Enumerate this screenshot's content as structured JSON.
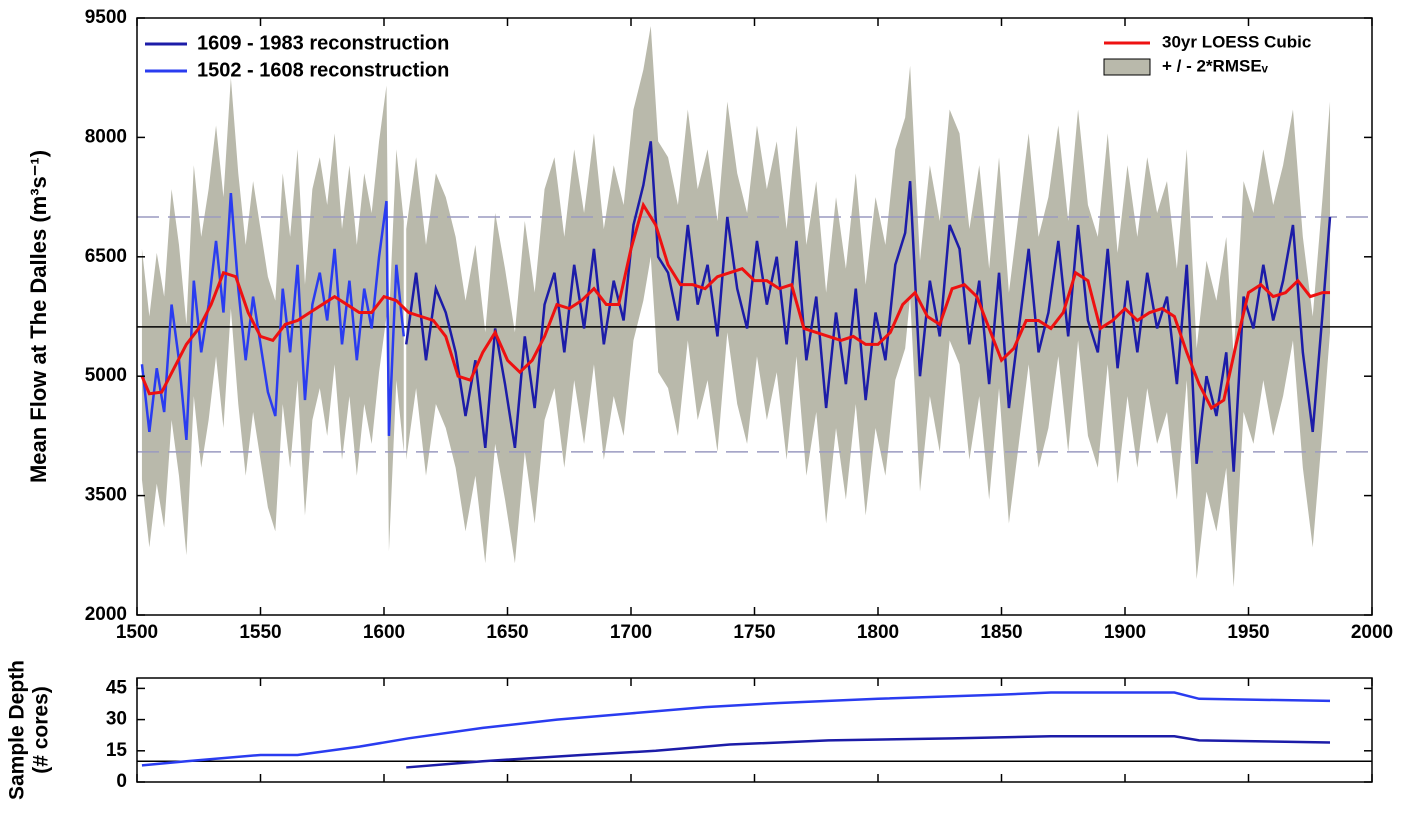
{
  "chart_data": [
    {
      "type": "line",
      "y_label": "Mean  Flow at The Dalles (m³s⁻¹)",
      "xlim": [
        1500,
        2000
      ],
      "xticks": [
        1500,
        1550,
        1600,
        1650,
        1700,
        1750,
        1800,
        1850,
        1900,
        1950,
        2000
      ],
      "ylim": [
        2000,
        9500
      ],
      "yticks": [
        2000,
        3500,
        5000,
        6500,
        8000,
        9500
      ],
      "hlines": [
        {
          "value": 5620,
          "color": "#000000",
          "dashed": false
        },
        {
          "value": 7000,
          "color": "#9a9ac0",
          "dashed": true
        },
        {
          "value": 4050,
          "color": "#9a9ac0",
          "dashed": true
        }
      ],
      "band": {
        "name": "+ / - 2*RMSEᵥ",
        "color": "#b9b9ab",
        "halfwidth": 1450
      },
      "series": [
        {
          "name": "1609 - 1983 reconstruction",
          "color": "#1c1ca8",
          "legend": "upper left",
          "band": true,
          "x": [
            1609,
            1613,
            1617,
            1621,
            1625,
            1629,
            1633,
            1637,
            1641,
            1645,
            1649,
            1653,
            1657,
            1661,
            1665,
            1669,
            1673,
            1677,
            1681,
            1685,
            1689,
            1693,
            1697,
            1701,
            1705,
            1708,
            1711,
            1715,
            1719,
            1723,
            1727,
            1731,
            1735,
            1739,
            1743,
            1747,
            1751,
            1755,
            1759,
            1763,
            1767,
            1771,
            1775,
            1779,
            1783,
            1787,
            1791,
            1795,
            1799,
            1803,
            1807,
            1811,
            1813,
            1817,
            1821,
            1825,
            1829,
            1833,
            1837,
            1841,
            1845,
            1849,
            1853,
            1857,
            1861,
            1865,
            1869,
            1873,
            1877,
            1881,
            1885,
            1889,
            1893,
            1897,
            1901,
            1905,
            1909,
            1913,
            1917,
            1921,
            1925,
            1929,
            1933,
            1937,
            1941,
            1944,
            1948,
            1952,
            1956,
            1960,
            1964,
            1968,
            1972,
            1976,
            1980,
            1983
          ],
          "values": [
            5400,
            6300,
            5200,
            6100,
            5800,
            5300,
            4500,
            5200,
            4100,
            5600,
            4900,
            4100,
            5500,
            4600,
            5900,
            6300,
            5300,
            6400,
            5600,
            6600,
            5400,
            6200,
            5700,
            6900,
            7400,
            7950,
            6500,
            6300,
            5700,
            6900,
            5900,
            6400,
            5500,
            7000,
            6100,
            5600,
            6700,
            5900,
            6500,
            5400,
            6700,
            5200,
            6000,
            4600,
            5800,
            4900,
            6100,
            4700,
            5800,
            5200,
            6400,
            6800,
            7450,
            5000,
            6200,
            5500,
            6900,
            6600,
            5400,
            6200,
            4900,
            6300,
            4600,
            5600,
            6600,
            5300,
            5800,
            6700,
            5500,
            6900,
            5700,
            5300,
            6600,
            5100,
            6200,
            5300,
            6300,
            5600,
            6000,
            4900,
            6400,
            3900,
            5000,
            4500,
            5300,
            3800,
            6000,
            5600,
            6400,
            5700,
            6200,
            6900,
            5300,
            4300,
            5800,
            7000
          ]
        },
        {
          "name": "1502 - 1608 reconstruction",
          "color": "#2a3cf0",
          "legend": "upper left",
          "band": true,
          "x": [
            1502,
            1505,
            1508,
            1511,
            1514,
            1517,
            1520,
            1523,
            1526,
            1529,
            1532,
            1535,
            1538,
            1541,
            1544,
            1547,
            1550,
            1553,
            1556,
            1559,
            1562,
            1565,
            1568,
            1571,
            1574,
            1577,
            1580,
            1583,
            1586,
            1589,
            1592,
            1595,
            1598,
            1601,
            1602,
            1605,
            1608
          ],
          "values": [
            5150,
            4300,
            5100,
            4550,
            5900,
            5200,
            4200,
            6200,
            5300,
            5900,
            6700,
            5800,
            7300,
            6100,
            5200,
            6000,
            5400,
            4800,
            4500,
            6100,
            5300,
            6400,
            4700,
            5900,
            6300,
            5700,
            6600,
            5400,
            6200,
            5200,
            6100,
            5600,
            6500,
            7200,
            4250,
            6400,
            5500
          ]
        },
        {
          "name": "30yr LOESS Cubic",
          "color": "#ee1111",
          "legend": "upper right",
          "band": false,
          "x": [
            1502,
            1505,
            1510,
            1515,
            1520,
            1525,
            1530,
            1535,
            1540,
            1545,
            1550,
            1555,
            1560,
            1565,
            1570,
            1575,
            1580,
            1585,
            1590,
            1595,
            1600,
            1605,
            1610,
            1615,
            1620,
            1625,
            1630,
            1635,
            1640,
            1645,
            1650,
            1655,
            1660,
            1665,
            1670,
            1675,
            1680,
            1685,
            1690,
            1695,
            1700,
            1705,
            1710,
            1715,
            1720,
            1725,
            1730,
            1735,
            1740,
            1745,
            1750,
            1755,
            1760,
            1765,
            1770,
            1775,
            1780,
            1785,
            1790,
            1795,
            1800,
            1805,
            1810,
            1815,
            1820,
            1825,
            1830,
            1835,
            1840,
            1845,
            1850,
            1855,
            1860,
            1865,
            1870,
            1875,
            1880,
            1885,
            1890,
            1895,
            1900,
            1905,
            1910,
            1915,
            1920,
            1925,
            1930,
            1935,
            1940,
            1945,
            1950,
            1955,
            1960,
            1965,
            1970,
            1975,
            1980,
            1983
          ],
          "values": [
            5000,
            4780,
            4800,
            5100,
            5400,
            5600,
            5900,
            6300,
            6250,
            5800,
            5500,
            5450,
            5650,
            5700,
            5800,
            5900,
            6000,
            5900,
            5800,
            5800,
            6000,
            5950,
            5800,
            5750,
            5700,
            5500,
            5000,
            4950,
            5300,
            5550,
            5200,
            5050,
            5200,
            5500,
            5900,
            5850,
            5950,
            6100,
            5900,
            5900,
            6600,
            7150,
            6900,
            6400,
            6150,
            6150,
            6100,
            6250,
            6300,
            6350,
            6200,
            6200,
            6100,
            6150,
            5600,
            5550,
            5500,
            5450,
            5500,
            5400,
            5400,
            5550,
            5900,
            6050,
            5750,
            5650,
            6100,
            6150,
            6000,
            5600,
            5200,
            5350,
            5700,
            5700,
            5600,
            5800,
            6300,
            6200,
            5600,
            5700,
            5850,
            5700,
            5800,
            5850,
            5750,
            5300,
            4900,
            4600,
            4700,
            5400,
            6050,
            6150,
            6000,
            6050,
            6200,
            6000,
            6050,
            6050
          ]
        }
      ]
    },
    {
      "type": "line",
      "y_label": [
        "Sample Depth",
        "(# cores)"
      ],
      "xlim": [
        1500,
        2000
      ],
      "xticks": [
        1500,
        1550,
        1600,
        1650,
        1700,
        1750,
        1800,
        1850,
        1900,
        1950,
        2000
      ],
      "ylim": [
        0,
        50
      ],
      "yticks": [
        0,
        15,
        30,
        45
      ],
      "hlines": [
        {
          "value": 10,
          "color": "#000000",
          "dashed": false
        }
      ],
      "series": [
        {
          "color": "#2a3cf0",
          "x": [
            1502,
            1520,
            1550,
            1565,
            1590,
            1610,
            1640,
            1670,
            1700,
            1730,
            1760,
            1800,
            1850,
            1870,
            1920,
            1930,
            1983
          ],
          "values": [
            8,
            10,
            13,
            13,
            17,
            21,
            26,
            30,
            33,
            36,
            38,
            40,
            42,
            43,
            43,
            40,
            39
          ]
        },
        {
          "color": "#1c1ca8",
          "x": [
            1609,
            1640,
            1680,
            1710,
            1740,
            1780,
            1830,
            1870,
            1920,
            1930,
            1983
          ],
          "values": [
            7,
            10,
            13,
            15,
            18,
            20,
            21,
            22,
            22,
            20,
            19
          ]
        }
      ]
    }
  ]
}
